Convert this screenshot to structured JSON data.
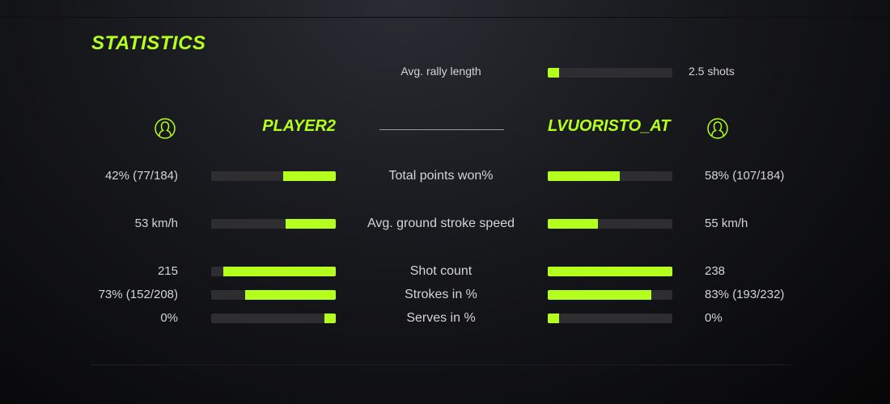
{
  "title": "STATISTICS",
  "accent_color": "#b4ff1e",
  "rally": {
    "label": "Avg. rally length",
    "value": "2.5 shots",
    "fill": 0.09
  },
  "players": {
    "left": {
      "name": "PLAYER2",
      "icon": "user-circle-icon"
    },
    "right": {
      "name": "LVUORISTO_AT",
      "icon": "user-circle-icon"
    }
  },
  "stats": [
    {
      "label": "Total points won%",
      "left": "42% (77/184)",
      "right": "58% (107/184)",
      "left_fill": 0.42,
      "right_fill": 0.58
    },
    {
      "label": "Avg. ground stroke speed",
      "left": "53 km/h",
      "right": "55 km/h",
      "left_fill": 0.4,
      "right_fill": 0.4
    },
    {
      "label": "Shot count",
      "left": "215",
      "right": "238",
      "left_fill": 0.9,
      "right_fill": 1.0
    },
    {
      "label": "Strokes in %",
      "left": "73% (152/208)",
      "right": "83% (193/232)",
      "left_fill": 0.73,
      "right_fill": 0.83
    },
    {
      "label": "Serves in %",
      "left": "0%",
      "right": "0%",
      "left_fill": 0.09,
      "right_fill": 0.09
    }
  ]
}
